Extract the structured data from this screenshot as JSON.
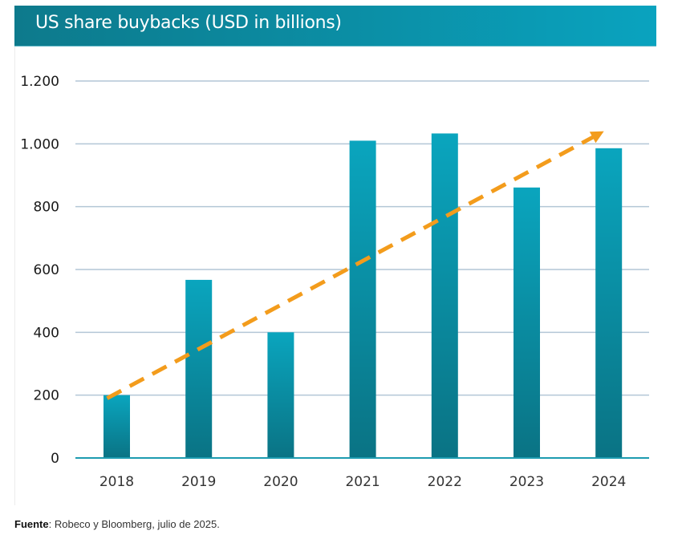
{
  "header": {
    "title": "US share buybacks (USD in billions)"
  },
  "source": {
    "label": "Fuente",
    "text": ": Robeco y Bloomberg, julio de 2025."
  },
  "colors": {
    "bar_top": "#0aa5be",
    "bar_bottom": "#0a7384",
    "trend": "#f39c1c",
    "grid": "#b3c6d6",
    "axis": "#1d9bb0"
  },
  "chart_data": {
    "type": "bar",
    "title": "US share buybacks (USD in billions)",
    "xlabel": "",
    "ylabel": "",
    "categories": [
      "2018",
      "2019",
      "2020",
      "2021",
      "2022",
      "2023",
      "2024"
    ],
    "values": [
      200,
      567,
      400,
      1010,
      1033,
      861,
      986
    ],
    "ylim": [
      0,
      1200
    ],
    "yticks": [
      0,
      200,
      400,
      600,
      800,
      1000,
      1200
    ],
    "ytick_labels": [
      "0",
      "200",
      "400",
      "600",
      "800",
      "1.000",
      "1.200"
    ],
    "grid": true,
    "legend": "none",
    "annotations": [
      {
        "type": "trend-arrow",
        "style": "dashed",
        "from": {
          "x": "2018",
          "y": 190
        },
        "to": {
          "x": "2024",
          "y": 1040
        }
      }
    ]
  }
}
